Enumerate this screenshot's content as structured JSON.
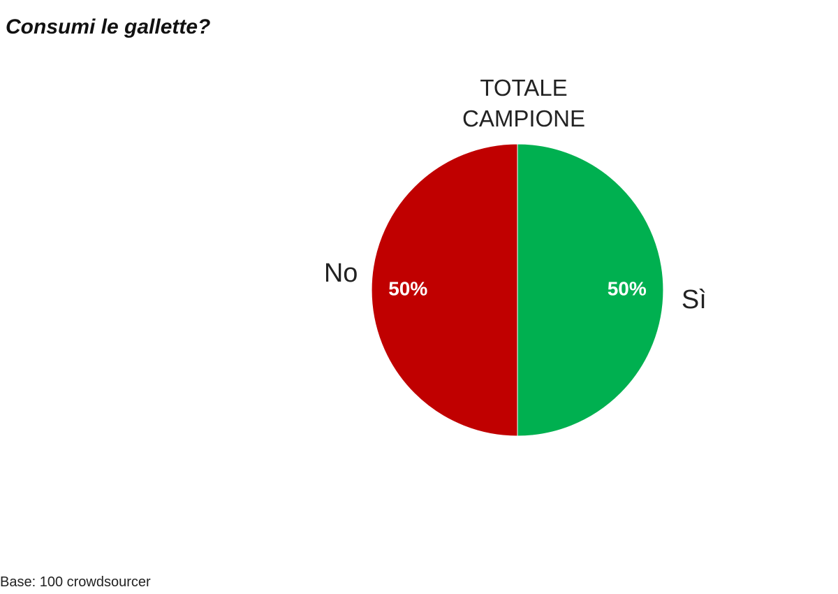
{
  "chart_data": {
    "type": "pie",
    "title": "Consumi le gallette?",
    "subtitle": "TOTALE CAMPIONE",
    "categories": [
      "Sì",
      "No"
    ],
    "values": [
      50,
      50
    ],
    "value_labels": [
      "50%",
      "50%"
    ],
    "colors": [
      "#00b050",
      "#c00000"
    ],
    "note": "Base: 100 crowdsourcer"
  }
}
